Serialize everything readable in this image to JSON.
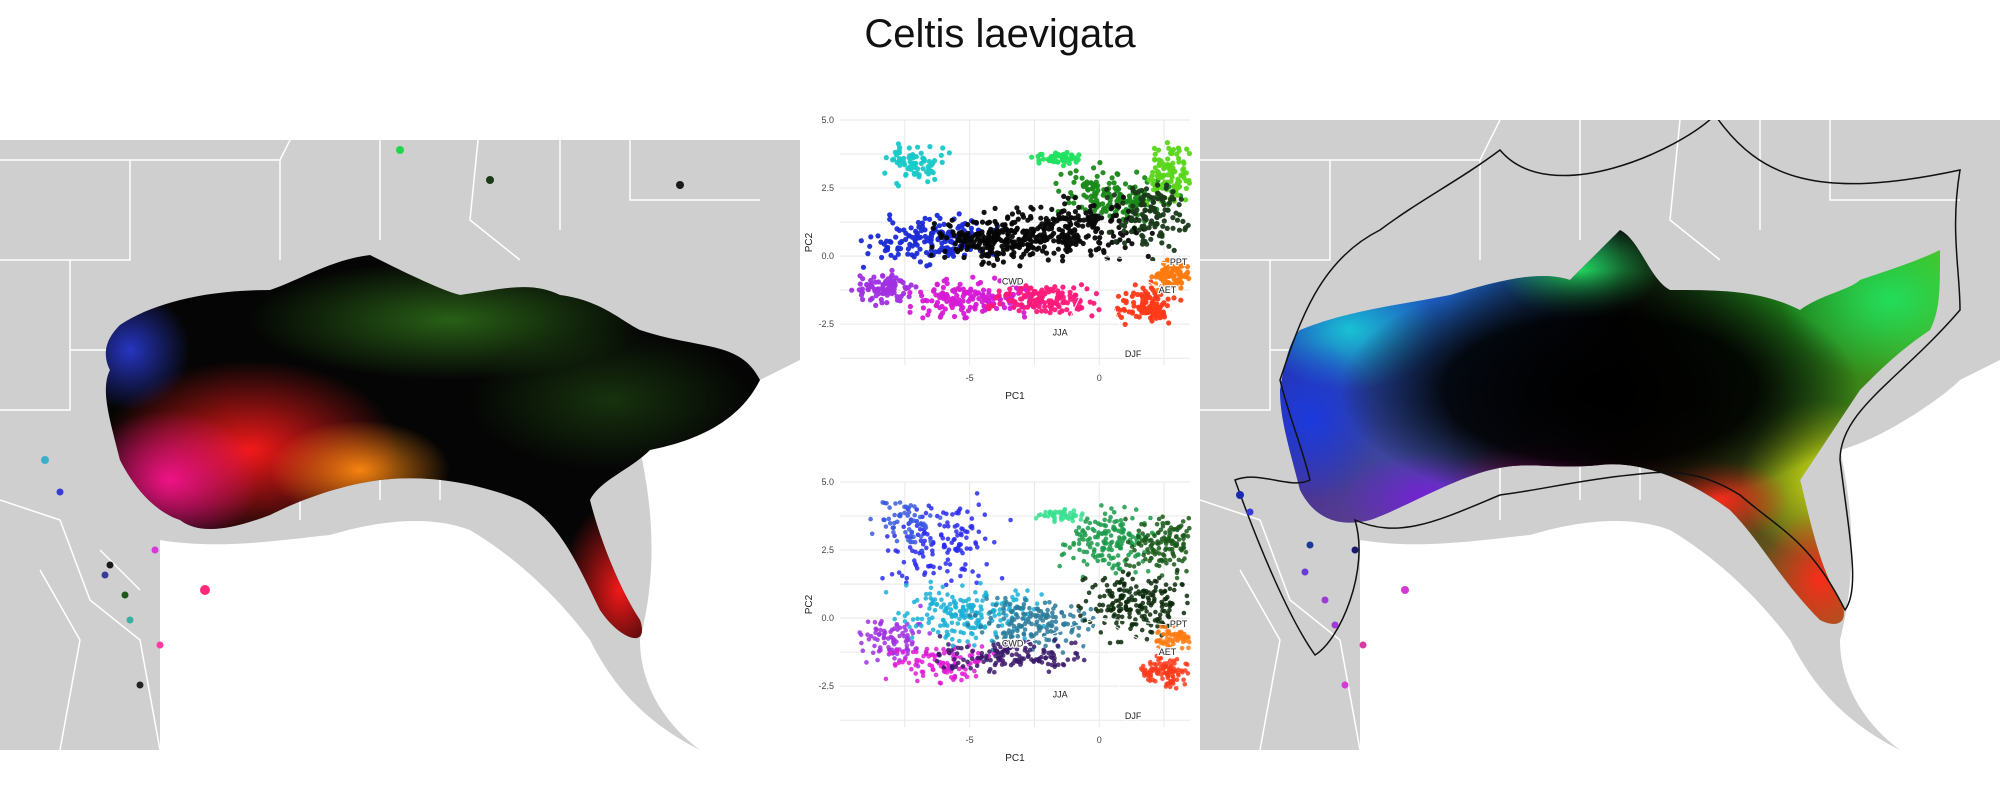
{
  "title": "Celtis laevigata",
  "chart_data": [
    {
      "type": "map",
      "panel": "left",
      "description_colors": [
        "#000000",
        "#2a3a12",
        "#ff1010",
        "#ff7a10",
        "#ff1493",
        "#7a2bd6",
        "#1a2aa8",
        "#1f6f1f"
      ],
      "basemap_color": "#cfcfcf",
      "border_color": "#ffffff"
    },
    {
      "type": "scatter",
      "panel": "pca-top",
      "xlabel": "PC1",
      "ylabel": "PC2",
      "xticks": [
        "-5",
        "0"
      ],
      "yticks": [
        "5.0",
        "2.5",
        "0.0",
        "-2.5"
      ],
      "xlim": [
        -10,
        3.5
      ],
      "ylim": [
        -4,
        5
      ],
      "loadings": [
        {
          "label": "PPT",
          "x": 2.6,
          "y": -0.25
        },
        {
          "label": "AET",
          "x": 2.4,
          "y": -1.2
        },
        {
          "label": "CWD",
          "x": -2.8,
          "y": -0.9
        },
        {
          "label": "JJA",
          "x": -1.2,
          "y": -2.4
        },
        {
          "label": "DJF",
          "x": 1.0,
          "y": -3.2
        }
      ],
      "grid": true
    },
    {
      "type": "scatter",
      "panel": "pca-bottom",
      "xlabel": "PC1",
      "ylabel": "PC2",
      "xticks": [
        "-5",
        "0"
      ],
      "yticks": [
        "5.0",
        "2.5",
        "0.0",
        "-2.5"
      ],
      "xlim": [
        -10,
        3.5
      ],
      "ylim": [
        -4,
        5
      ],
      "loadings": [
        {
          "label": "PPT",
          "x": 2.6,
          "y": -0.25
        },
        {
          "label": "AET",
          "x": 2.4,
          "y": -1.2
        },
        {
          "label": "CWD",
          "x": -2.8,
          "y": -0.9
        },
        {
          "label": "JJA",
          "x": -1.2,
          "y": -2.4
        },
        {
          "label": "DJF",
          "x": 1.0,
          "y": -3.2
        }
      ],
      "grid": true
    },
    {
      "type": "map",
      "panel": "right",
      "hull_outline": true,
      "basemap_color": "#cfcfcf",
      "border_color": "#ffffff"
    }
  ],
  "colors": {
    "land": "#cfcfcf",
    "state_border": "#ffffff",
    "grid": "#e8e8e8"
  }
}
